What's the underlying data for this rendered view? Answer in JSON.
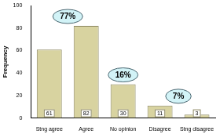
{
  "chart_data": {
    "type": "bar",
    "y_label": "Frequency",
    "categories": [
      "Stng agree",
      "Agree",
      "No opinion",
      "Disagree",
      "Stng disagree"
    ],
    "values": [
      61,
      82,
      30,
      11,
      3
    ],
    "color": "#d8d3a0",
    "ylim": [
      0,
      100
    ],
    "yticks": [
      0,
      20,
      40,
      60,
      80,
      100
    ],
    "grid": false,
    "data_labels": true,
    "annotations": [
      "77%",
      "16%",
      "7%"
    ]
  }
}
